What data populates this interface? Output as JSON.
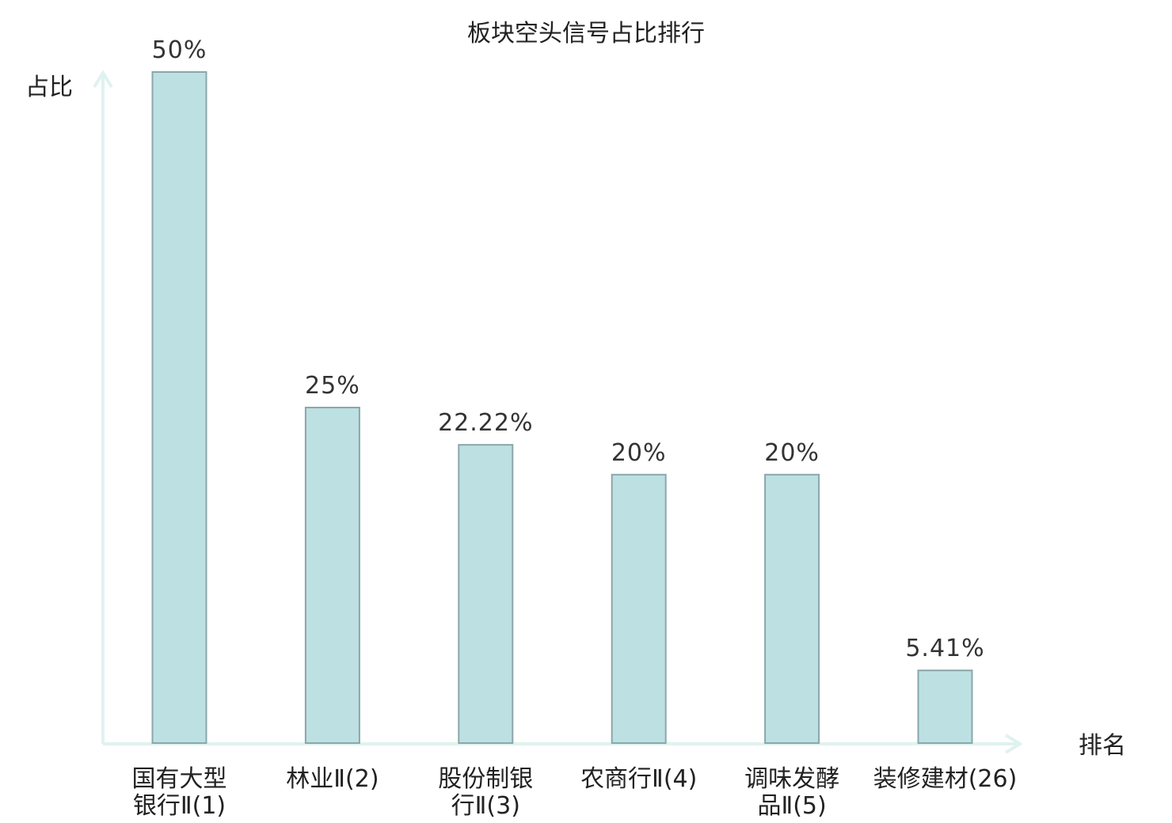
{
  "colors": {
    "bar_fill": "#bde0e3",
    "bar_stroke": "#8aa7aa",
    "axis": "#e0f2ef",
    "text": "#222222",
    "highlight": "#e0191e"
  },
  "chart_data": {
    "type": "bar",
    "title": "板块空头信号占比排行",
    "ylabel": "占比",
    "xlabel": "排名",
    "ylim": [
      0,
      50
    ],
    "grid": false,
    "legend": "none",
    "categories": [
      {
        "lines": [
          "国有大型",
          "银行Ⅱ(1)"
        ],
        "highlight": false
      },
      {
        "lines": [
          "林业Ⅱ(2)"
        ],
        "highlight": false
      },
      {
        "lines": [
          "股份制银",
          "行Ⅱ(3)"
        ],
        "highlight": false
      },
      {
        "lines": [
          "农商行Ⅱ(4)"
        ],
        "highlight": false
      },
      {
        "lines": [
          "调味发酵",
          "品Ⅱ(5)"
        ],
        "highlight": false
      },
      {
        "lines": [
          "装修建材(26)"
        ],
        "highlight": true
      }
    ],
    "values": [
      50,
      25,
      22.22,
      20,
      20,
      5.41
    ],
    "value_labels": [
      "50%",
      "25%",
      "22.22%",
      "20%",
      "20%",
      "5.41%"
    ]
  }
}
